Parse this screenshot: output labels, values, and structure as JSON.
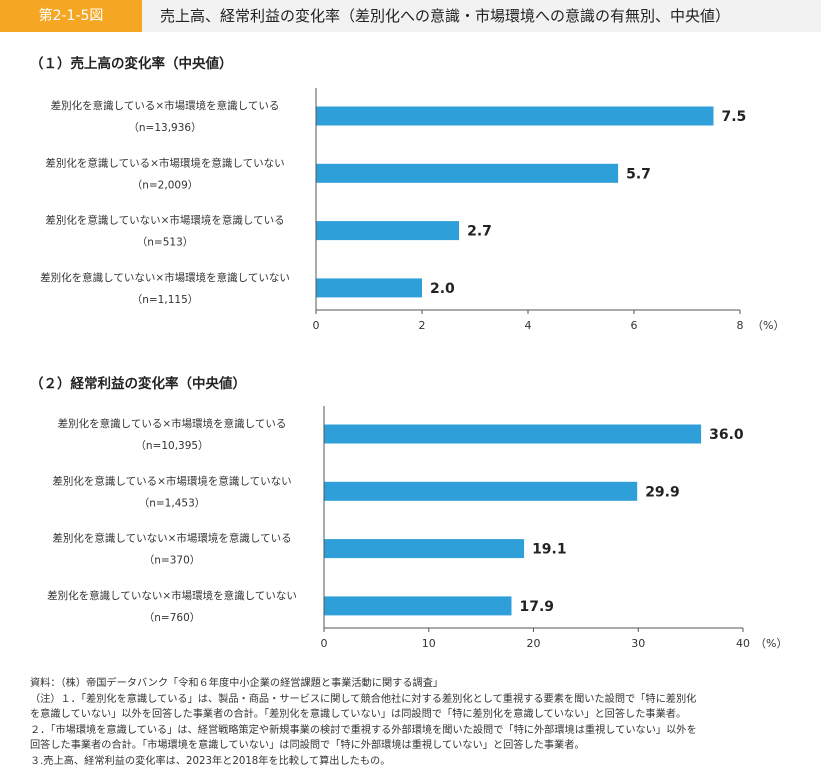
{
  "header": {
    "figure_no": "第2-1-5図",
    "title": "売上高、経常利益の変化率（差別化への意識・市場環境への意識の有無別、中央値）"
  },
  "chart_data": [
    {
      "type": "bar",
      "orientation": "horizontal",
      "title": "（１）売上高の変化率（中央値）",
      "categories": [
        "差別化を意識している×市場環境を意識している",
        "差別化を意識している×市場環境を意識していない",
        "差別化を意識していない×市場環境を意識している",
        "差別化を意識していない×市場環境を意識していない"
      ],
      "sample_sizes": [
        "（n=13,936）",
        "（n=2,009）",
        "（n=513）",
        "（n=1,115）"
      ],
      "values": [
        7.5,
        5.7,
        2.7,
        2.0
      ],
      "value_labels": [
        "7.5",
        "5.7",
        "2.7",
        "2.0"
      ],
      "xlim": [
        0,
        8
      ],
      "ticks": [
        "0",
        "2",
        "4",
        "6",
        "8"
      ],
      "unit": "（%）",
      "bar_color": "#2e9fd8",
      "grid": false
    },
    {
      "type": "bar",
      "orientation": "horizontal",
      "title": "（２）経常利益の変化率（中央値）",
      "categories": [
        "差別化を意識している×市場環境を意識している",
        "差別化を意識している×市場環境を意識していない",
        "差別化を意識していない×市場環境を意識している",
        "差別化を意識していない×市場環境を意識していない"
      ],
      "sample_sizes": [
        "（n=10,395）",
        "（n=1,453）",
        "（n=370）",
        "（n=760）"
      ],
      "values": [
        36.0,
        29.9,
        19.1,
        17.9
      ],
      "value_labels": [
        "36.0",
        "29.9",
        "19.1",
        "17.9"
      ],
      "xlim": [
        0,
        40
      ],
      "ticks": [
        "0",
        "10",
        "20",
        "30",
        "40"
      ],
      "unit": "（%）",
      "bar_color": "#2e9fd8",
      "grid": false
    }
  ],
  "notes": [
    "資料：（株）帝国データバンク「令和６年度中小企業の経営課題と事業活動に関する調査」",
    "（注）１．「差別化を意識している」は、製品・商品・サービスに関して競合他社に対する差別化として重視する要素を聞いた設問で「特に差別化",
    "を意識していない」以外を回答した事業者の合計。「差別化を意識していない」は同設問で「特に差別化を意識していない」と回答した事業者。",
    "２．「市場環境を意識している」は、経営戦略策定や新規事業の検討で重視する外部環境を聞いた設問で「特に外部環境は重視していない」以外を",
    "回答した事業者の合計。「市場環境を意識していない」は同設問で「特に外部環境は重視していない」と回答した事業者。",
    "３.売上高、経常利益の変化率は、2023年と2018年を比較して算出したもの。"
  ]
}
